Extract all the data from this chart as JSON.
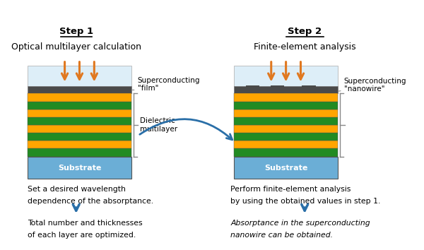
{
  "fig_width": 6.0,
  "fig_height": 3.54,
  "dpi": 100,
  "bg_color": "#ffffff",
  "step1_title": "Step 1",
  "step1_subtitle": "Optical multilayer calculation",
  "step2_title": "Step 2",
  "step2_subtitle": "Finite-element analysis",
  "substrate_color": "#6baed6",
  "substrate_text": "Substrate",
  "sky_color": "#ddeef8",
  "dark_layer_color": "#4a4a4a",
  "layers": [
    "#228B22",
    "#ffa500",
    "#228B22",
    "#ffa500",
    "#228B22",
    "#ffa500",
    "#228B22",
    "#ffa500"
  ],
  "arrow_color": "#e07820",
  "step_arrow_color": "#2a6fa8",
  "label_film": "Superconducting\n\"film\"",
  "label_multilayer": "Dielectric\nmultilayer",
  "label_nanowire": "Superconducting\n\"nanowire\"",
  "text1a": "Set a desired wavelength",
  "text1b": "dependence of the absorptance.",
  "text1c": "Total number and thicknesses",
  "text1d": "of each layer are optimized.",
  "text2a": "Perform finite-element analysis",
  "text2b": "by using the obtained values in step 1.",
  "text2c": "Absorptance in the superconducting",
  "text2d": "nanowire can be obtained.",
  "nanowire_color": "#4a4a4a",
  "brace_color": "#888888"
}
